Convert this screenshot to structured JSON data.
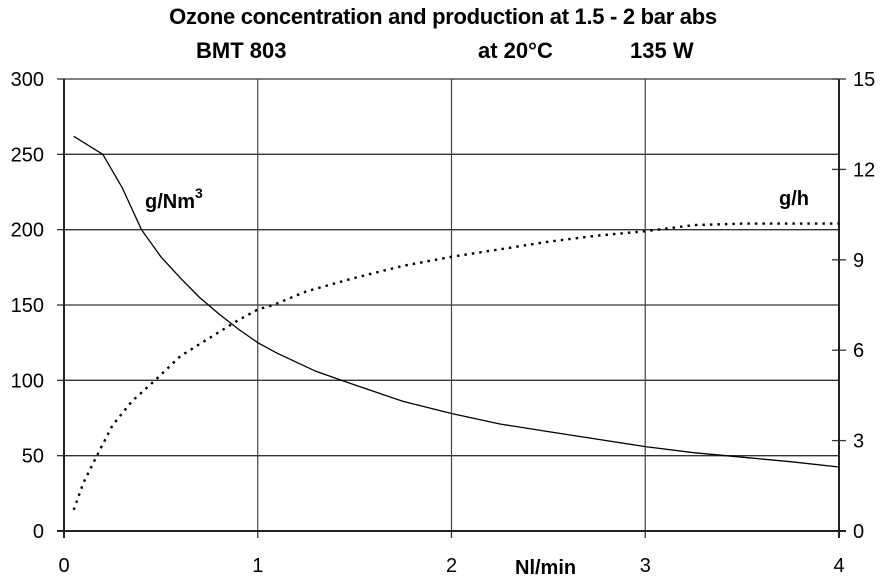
{
  "header": {
    "title": "Ozone concentration and production at 1.5 - 2 bar abs",
    "model": "BMT 803",
    "temperature": "at 20°C",
    "power": "135 W"
  },
  "axes": {
    "x_label": "Nl/min",
    "left_label": "g/Nm",
    "left_label_sup": "3",
    "right_label": "g/h",
    "x_ticks": [
      "0",
      "1",
      "2",
      "3",
      "4"
    ],
    "left_ticks": [
      "300",
      "250",
      "200",
      "150",
      "100",
      "50",
      "0"
    ],
    "right_ticks": [
      "15",
      "12",
      "9",
      "6",
      "3",
      "0"
    ]
  },
  "chart_data": {
    "type": "line",
    "title": "Ozone concentration and production at 1.5 - 2 bar abs — BMT 803 at 20°C 135 W",
    "xlabel": "Nl/min",
    "ylabel": "g/Nm3",
    "y2label": "g/h",
    "xlim": [
      0,
      4
    ],
    "ylim": [
      0,
      300
    ],
    "y2lim": [
      0,
      15
    ],
    "grid": true,
    "series": [
      {
        "name": "g/Nm3 (concentration)",
        "axis": "left",
        "style": "solid",
        "x": [
          0.05,
          0.2,
          0.3,
          0.4,
          0.5,
          0.6,
          0.7,
          0.8,
          0.9,
          1.0,
          1.1,
          1.3,
          1.5,
          1.75,
          2.0,
          2.25,
          2.5,
          2.75,
          3.0,
          3.25,
          3.5,
          3.75,
          4.0
        ],
        "values": [
          262,
          250,
          228,
          200,
          182,
          168,
          155,
          144,
          134,
          125,
          118,
          106,
          97,
          86,
          78,
          71,
          66,
          61,
          56,
          52,
          49,
          46,
          42.5
        ]
      },
      {
        "name": "g/h (production)",
        "axis": "right",
        "style": "dotted",
        "x": [
          0.05,
          0.1,
          0.17,
          0.25,
          0.35,
          0.47,
          0.6,
          0.75,
          0.9,
          1.0,
          1.08,
          1.25,
          1.5,
          1.75,
          2.0,
          2.25,
          2.5,
          2.75,
          3.0,
          3.25,
          3.5,
          4.0
        ],
        "values": [
          0.7,
          1.6,
          2.5,
          3.5,
          4.3,
          5.0,
          5.8,
          6.4,
          7.0,
          7.35,
          7.5,
          7.95,
          8.4,
          8.8,
          9.1,
          9.35,
          9.6,
          9.8,
          9.95,
          10.15,
          10.2,
          10.2
        ]
      }
    ]
  }
}
